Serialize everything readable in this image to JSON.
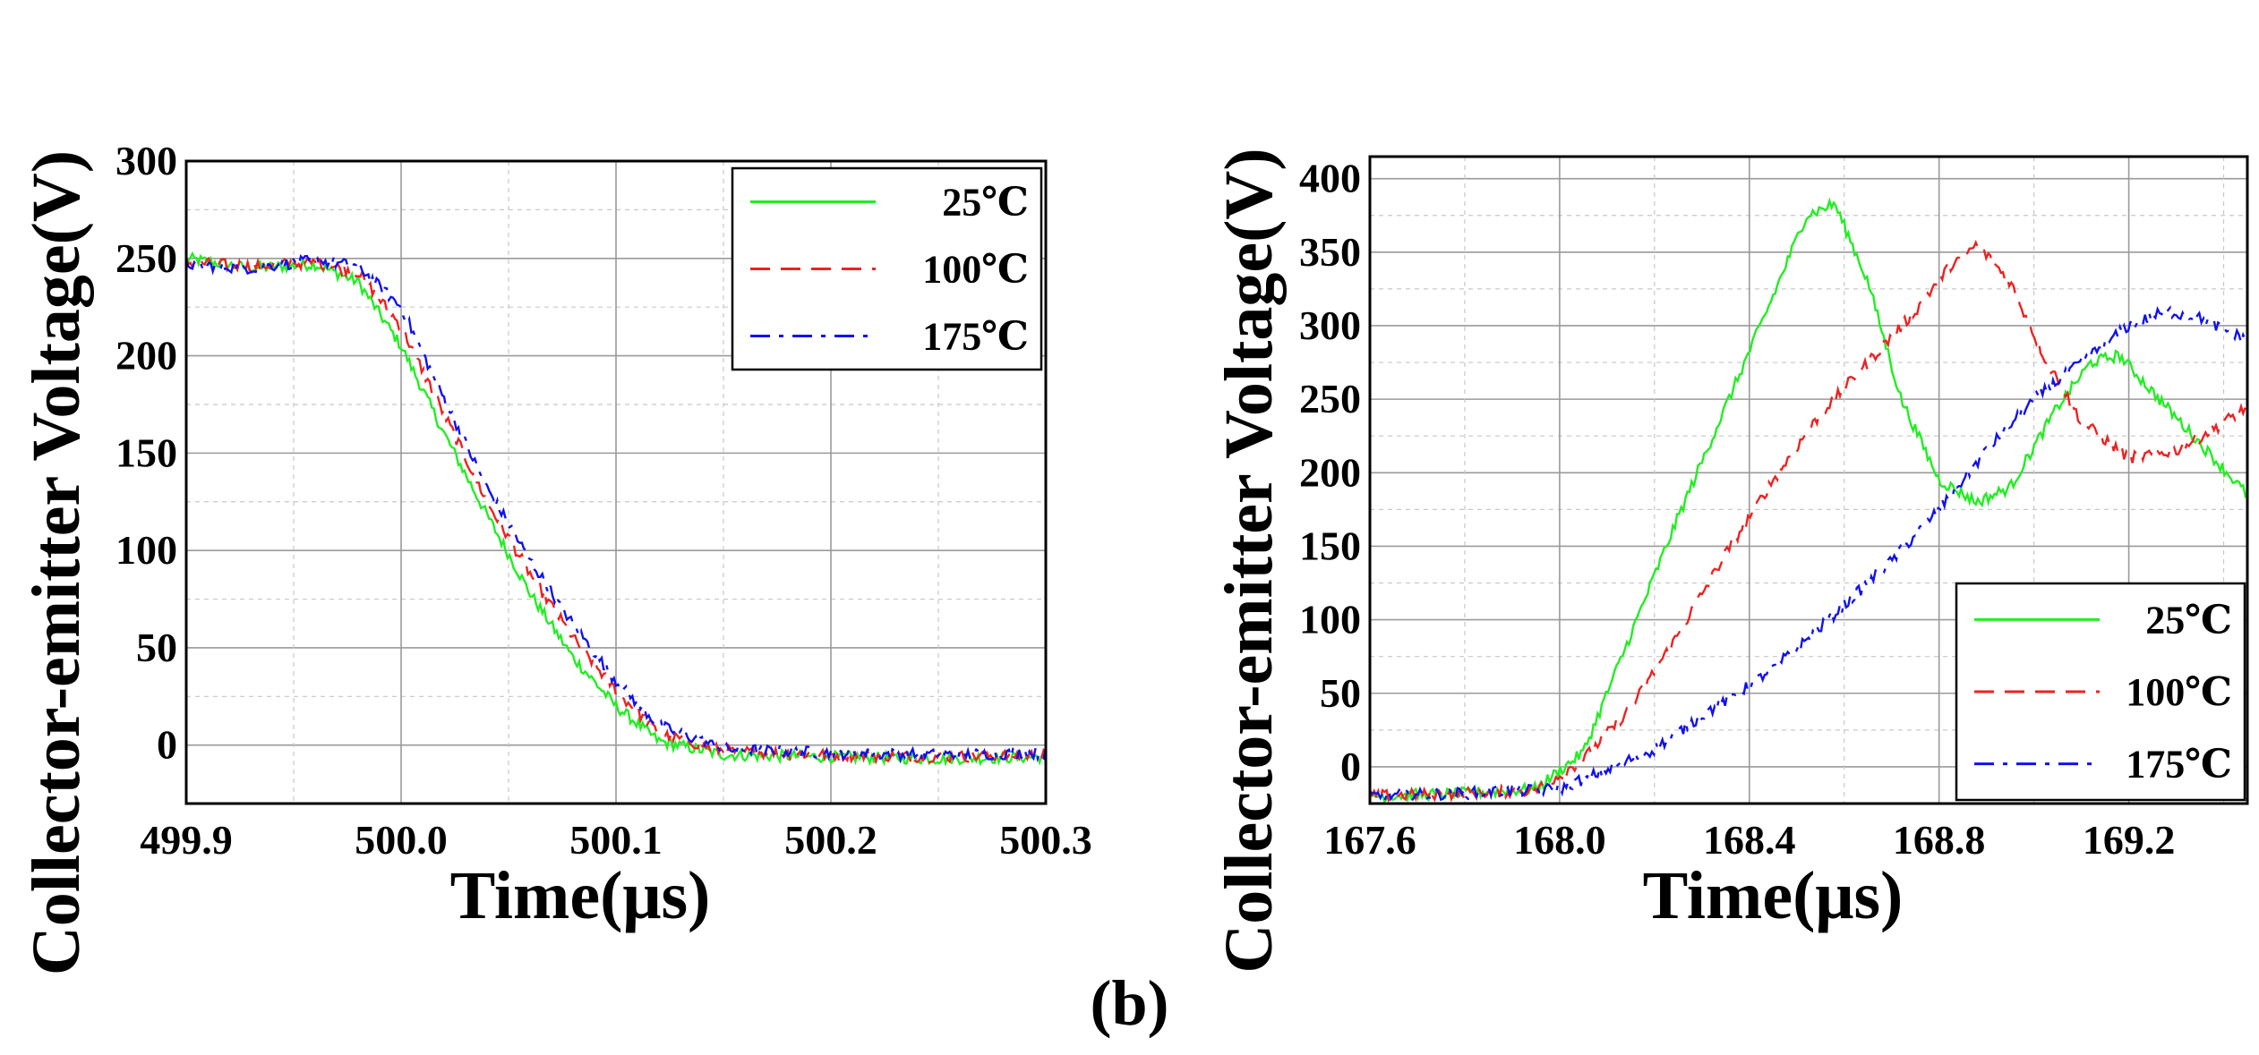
{
  "caption": "(b)",
  "colors": {
    "25C": "#22ee22",
    "100C": "#ee2222",
    "175C": "#1111ee"
  },
  "chart_data": [
    {
      "type": "line",
      "title": "",
      "xlabel": "Time(μs)",
      "ylabel": "Collector-emitter  Voltage(V)",
      "xlim": [
        499.9,
        500.3
      ],
      "ylim": [
        -30,
        300
      ],
      "xticks": [
        499.9,
        500.0,
        500.1,
        500.2,
        500.3
      ],
      "xtick_labels": [
        "499.9",
        "500.0",
        "500.1",
        "500.2",
        "500.3"
      ],
      "yticks": [
        0,
        50,
        100,
        150,
        200,
        250,
        300
      ],
      "ytick_labels": [
        "0",
        "50",
        "100",
        "150",
        "200",
        "250",
        "300"
      ],
      "grid": true,
      "legend_position": "top-right",
      "series": [
        {
          "name": "25℃",
          "color": "#22ee22",
          "dash": "solid",
          "x": [
            499.9,
            499.93,
            499.96,
            499.98,
            500.0,
            500.02,
            500.04,
            500.06,
            500.08,
            500.1,
            500.12,
            500.15,
            500.2,
            500.25,
            500.3
          ],
          "y": [
            250,
            245,
            247,
            238,
            205,
            160,
            118,
            78,
            45,
            20,
            2,
            -5,
            -6,
            -7,
            -6
          ]
        },
        {
          "name": "100℃",
          "color": "#ee2222",
          "dash": "dashed",
          "x": [
            499.9,
            499.93,
            499.96,
            499.98,
            500.0,
            500.02,
            500.04,
            500.06,
            500.08,
            500.1,
            500.12,
            500.15,
            500.2,
            500.25,
            500.3
          ],
          "y": [
            248,
            246,
            248,
            243,
            215,
            170,
            125,
            88,
            55,
            28,
            6,
            -3,
            -5,
            -6,
            -5
          ]
        },
        {
          "name": "175℃",
          "color": "#1111ee",
          "dash": "dashdot",
          "x": [
            499.9,
            499.93,
            499.96,
            499.98,
            500.0,
            500.02,
            500.04,
            500.06,
            500.08,
            500.1,
            500.12,
            500.15,
            500.2,
            500.25,
            500.3
          ],
          "y": [
            247,
            245,
            249,
            246,
            225,
            178,
            132,
            95,
            62,
            33,
            10,
            -2,
            -4,
            -5,
            -4
          ]
        }
      ]
    },
    {
      "type": "line",
      "title": "",
      "xlabel": "Time(μs)",
      "ylabel": "Collector-emitter  Voltage(V)",
      "xlim": [
        167.6,
        169.45
      ],
      "ylim": [
        -25,
        415
      ],
      "xticks": [
        167.6,
        168.0,
        168.4,
        168.8,
        169.2
      ],
      "xtick_labels": [
        "167.6",
        "168.0",
        "168.4",
        "168.8",
        "169.2"
      ],
      "yticks": [
        0,
        50,
        100,
        150,
        200,
        250,
        300,
        350,
        400
      ],
      "ytick_labels": [
        "0",
        "50",
        "100",
        "150",
        "200",
        "250",
        "300",
        "350",
        "400"
      ],
      "grid": true,
      "legend_position": "bottom-right",
      "series": [
        {
          "name": "25℃",
          "color": "#22ee22",
          "dash": "solid",
          "x": [
            167.6,
            167.8,
            167.95,
            168.05,
            168.15,
            168.25,
            168.35,
            168.45,
            168.52,
            168.58,
            168.65,
            168.72,
            168.8,
            168.88,
            168.95,
            169.05,
            169.12,
            169.18,
            169.25,
            169.35,
            169.45
          ],
          "y": [
            -20,
            -18,
            -15,
            10,
            90,
            170,
            245,
            320,
            375,
            383,
            330,
            250,
            195,
            180,
            190,
            245,
            275,
            280,
            255,
            220,
            185
          ]
        },
        {
          "name": "100℃",
          "color": "#ee2222",
          "dash": "dashed",
          "x": [
            167.6,
            167.8,
            167.95,
            168.05,
            168.15,
            168.25,
            168.35,
            168.45,
            168.55,
            168.65,
            168.75,
            168.82,
            168.88,
            168.95,
            169.02,
            169.1,
            169.2,
            169.3,
            169.38,
            169.45
          ],
          "y": [
            -20,
            -18,
            -16,
            5,
            40,
            90,
            145,
            195,
            240,
            275,
            310,
            340,
            355,
            330,
            280,
            235,
            210,
            215,
            230,
            245
          ]
        },
        {
          "name": "175℃",
          "color": "#1111ee",
          "dash": "dashdot",
          "x": [
            167.6,
            167.8,
            168.0,
            168.1,
            168.2,
            168.3,
            168.4,
            168.5,
            168.6,
            168.7,
            168.8,
            168.9,
            169.0,
            169.1,
            169.2,
            169.28,
            169.35,
            169.45
          ],
          "y": [
            -20,
            -18,
            -15,
            -2,
            12,
            35,
            55,
            80,
            110,
            140,
            175,
            215,
            250,
            275,
            300,
            310,
            305,
            290
          ]
        }
      ]
    }
  ]
}
